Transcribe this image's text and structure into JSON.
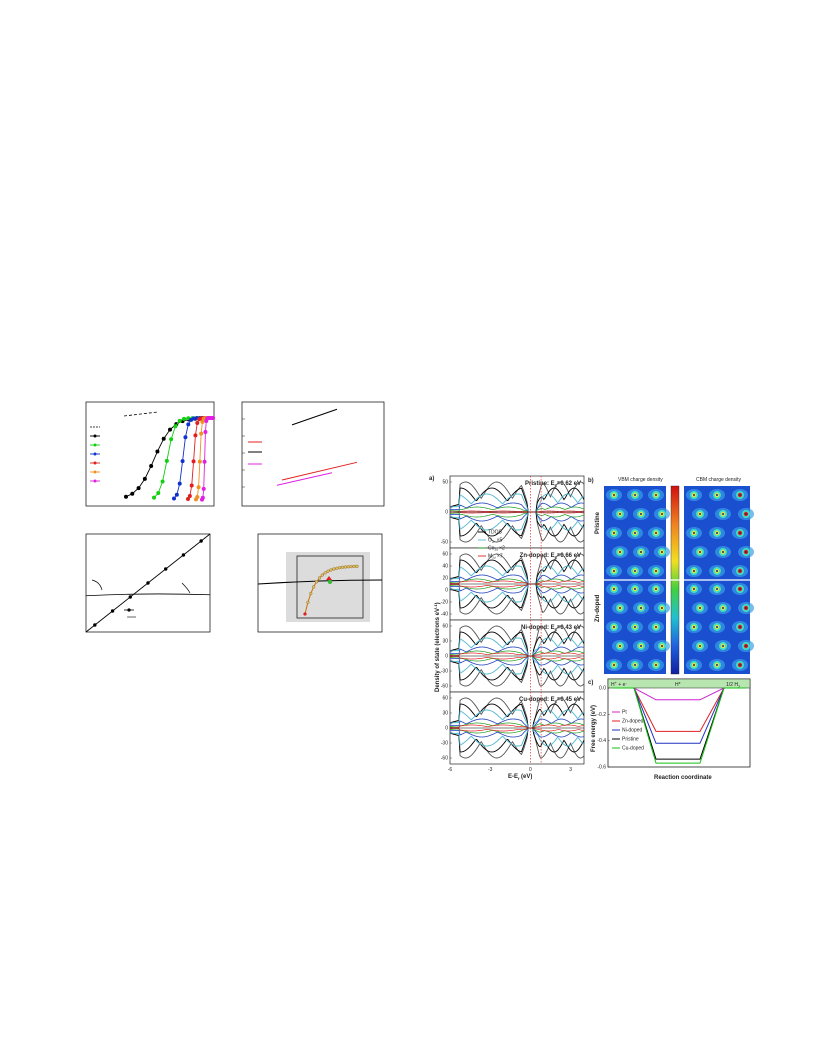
{
  "left_figure": {
    "chart_data": [
      {
        "type": "line",
        "series": [
          {
            "color": "#000000",
            "values": [
              0.02,
              0.15,
              0.4,
              0.75,
              0.92,
              0.97,
              0.99,
              1.0,
              1.0,
              1.0
            ]
          },
          {
            "color": "#10d010",
            "values": [
              0.02,
              0.1,
              0.5,
              0.85,
              0.98,
              1.0,
              1.0,
              1.0,
              1.0,
              1.0
            ]
          },
          {
            "color": "#1030d0",
            "values": [
              0.02,
              0.12,
              0.45,
              0.82,
              0.97,
              1.0,
              1.0,
              1.0,
              1.0,
              1.0
            ]
          },
          {
            "color": "#e02020",
            "values": [
              0.02,
              0.2,
              0.7,
              0.96,
              1.0,
              1.0,
              1.0,
              1.0,
              1.0,
              1.0
            ]
          },
          {
            "color": "#f09020",
            "values": [
              0.02,
              0.25,
              0.8,
              0.98,
              1.0,
              1.0,
              1.0,
              1.0,
              1.0,
              1.0
            ]
          },
          {
            "color": "#e020e0",
            "values": [
              0.02,
              0.4,
              0.95,
              1.0,
              1.0,
              1.0,
              1.0,
              1.0,
              1.0,
              1.0
            ]
          }
        ]
      },
      {
        "type": "line",
        "series": [
          {
            "color": "#000000",
            "values": [
              0.78,
              0.93
            ]
          },
          {
            "color": "#e02020",
            "values": [
              0.25,
              0.42
            ]
          },
          {
            "color": "#e020e0",
            "values": [
              0.2,
              0.32
            ]
          }
        ]
      },
      {
        "type": "line",
        "series": [
          {
            "color": "#000000",
            "values": [
              0.0,
              1.0
            ]
          },
          {
            "color": "#000000",
            "values": [
              0.37,
              0.38
            ]
          }
        ]
      },
      {
        "type": "line",
        "series": [
          {
            "color": "#d07000",
            "values": [
              0.05,
              0.55,
              0.75,
              0.85,
              0.9,
              0.92
            ]
          }
        ]
      }
    ]
  },
  "right_figure": {
    "panel_a": {
      "label": "a)",
      "xlabel": "E-E",
      "xlabel_sub": "f",
      "xlabel_unit": " (eV)",
      "ylabel": "Density of state (electrons eV",
      "ylabel_sup": "-1",
      "ylabel_end": ")",
      "x_ticks": [
        "-6",
        "-3",
        "0",
        "3"
      ],
      "legend": {
        "items": [
          {
            "label": "TDOS",
            "color": "#000000"
          },
          {
            "label": "O",
            "sub": "2p",
            "suffix": " ×5",
            "color": "#50b8d0"
          },
          {
            "label": "Co",
            "sub": "3d",
            "suffix": " ×2",
            "color": "#1a9a1a"
          },
          {
            "label": "M",
            "sub": "3d",
            "suffix": " ×7",
            "color": "#e02020"
          }
        ]
      },
      "subpanels": [
        {
          "title": "Pristine",
          "gap_prefix": ": E",
          "gap_sub": "g",
          "gap_value": "=0.62 eV",
          "y_ticks": [
            "50",
            "0",
            "-50"
          ]
        },
        {
          "title": "Zn-doped",
          "gap_prefix": ": E",
          "gap_sub": "g",
          "gap_value": "=0.66 eV",
          "y_ticks": [
            "60",
            "40",
            "20",
            "0",
            "-20",
            "-40"
          ]
        },
        {
          "title": "Ni-doped",
          "gap_prefix": ": E",
          "gap_sub": "g",
          "gap_value": "=0.43 eV",
          "y_ticks": [
            "60",
            "30",
            "0",
            "-30",
            "-60"
          ]
        },
        {
          "title": "Cu-doped",
          "gap_prefix": ": E",
          "gap_sub": "g",
          "gap_value": "=0.45 eV",
          "y_ticks": [
            "60",
            "30",
            "0",
            "-30",
            "-60"
          ]
        }
      ]
    },
    "panel_b": {
      "label": "b)",
      "col_labels": [
        "VBM charge density",
        "CBM charge density"
      ],
      "row_labels": [
        "Pristine",
        "Zn-doped"
      ]
    },
    "panel_c": {
      "label": "c)",
      "ylabel": "Free energy (eV)",
      "xlabel": "Reaction coordinate",
      "state_labels": {
        "left": "H",
        "left_sup": "+",
        "left_end": " + e",
        "left_end_sup": "-",
        "mid": "H*",
        "right": "1/2 H",
        "right_sub": "2"
      },
      "y_ticks": [
        "0.0",
        "-0.2",
        "-0.4",
        "-0.6"
      ],
      "chart_data": {
        "type": "line",
        "x": [
          "H+ + e-",
          "H*",
          "1/2 H2"
        ],
        "ylim": [
          -0.6,
          0.0
        ],
        "series": [
          {
            "name": "Pt",
            "color": "#d020d0",
            "values": [
              0.0,
              -0.09,
              0.0
            ]
          },
          {
            "name": "Zn-doped",
            "color": "#e02020",
            "values": [
              0.0,
              -0.33,
              0.0
            ]
          },
          {
            "name": "Ni-doped",
            "color": "#2030c0",
            "values": [
              0.0,
              -0.42,
              0.0
            ]
          },
          {
            "name": "Pristine",
            "color": "#000000",
            "values": [
              0.0,
              -0.54,
              0.0
            ]
          },
          {
            "name": "Cu-doped",
            "color": "#10c010",
            "values": [
              0.0,
              -0.57,
              0.0
            ]
          }
        ]
      }
    }
  }
}
